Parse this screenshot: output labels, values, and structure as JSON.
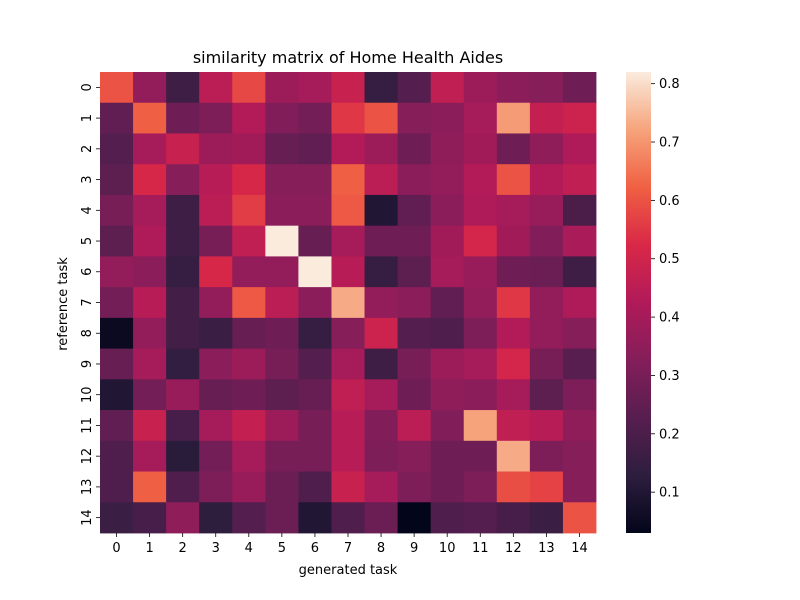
{
  "chart_data": {
    "type": "heatmap",
    "title": "similarity matrix of Home Health Aides",
    "xlabel": "generated task",
    "ylabel": "reference task",
    "x_categories": [
      "0",
      "1",
      "2",
      "3",
      "4",
      "5",
      "6",
      "7",
      "8",
      "9",
      "10",
      "11",
      "12",
      "13",
      "14"
    ],
    "y_categories": [
      "0",
      "1",
      "2",
      "3",
      "4",
      "5",
      "6",
      "7",
      "8",
      "9",
      "10",
      "11",
      "12",
      "13",
      "14"
    ],
    "values": [
      [
        0.6,
        0.36,
        0.17,
        0.45,
        0.58,
        0.38,
        0.4,
        0.48,
        0.15,
        0.22,
        0.46,
        0.38,
        0.34,
        0.33,
        0.28
      ],
      [
        0.25,
        0.62,
        0.28,
        0.31,
        0.43,
        0.32,
        0.29,
        0.55,
        0.6,
        0.33,
        0.34,
        0.4,
        0.71,
        0.47,
        0.49
      ],
      [
        0.22,
        0.4,
        0.48,
        0.38,
        0.39,
        0.26,
        0.25,
        0.43,
        0.38,
        0.28,
        0.35,
        0.39,
        0.28,
        0.35,
        0.42
      ],
      [
        0.24,
        0.52,
        0.33,
        0.44,
        0.52,
        0.33,
        0.33,
        0.62,
        0.45,
        0.34,
        0.36,
        0.43,
        0.6,
        0.43,
        0.46
      ],
      [
        0.3,
        0.4,
        0.17,
        0.45,
        0.56,
        0.34,
        0.34,
        0.61,
        0.1,
        0.25,
        0.34,
        0.42,
        0.4,
        0.37,
        0.2
      ],
      [
        0.24,
        0.42,
        0.17,
        0.3,
        0.46,
        0.82,
        0.26,
        0.4,
        0.28,
        0.28,
        0.39,
        0.51,
        0.39,
        0.32,
        0.41
      ],
      [
        0.36,
        0.34,
        0.15,
        0.52,
        0.36,
        0.36,
        0.82,
        0.44,
        0.15,
        0.24,
        0.4,
        0.37,
        0.28,
        0.27,
        0.17
      ],
      [
        0.29,
        0.44,
        0.18,
        0.36,
        0.61,
        0.45,
        0.34,
        0.73,
        0.36,
        0.34,
        0.25,
        0.36,
        0.55,
        0.36,
        0.42
      ],
      [
        0.05,
        0.36,
        0.18,
        0.16,
        0.26,
        0.28,
        0.15,
        0.33,
        0.49,
        0.22,
        0.21,
        0.31,
        0.43,
        0.36,
        0.33
      ],
      [
        0.26,
        0.4,
        0.14,
        0.34,
        0.38,
        0.3,
        0.22,
        0.4,
        0.17,
        0.3,
        0.38,
        0.4,
        0.51,
        0.3,
        0.23
      ],
      [
        0.1,
        0.29,
        0.37,
        0.26,
        0.28,
        0.24,
        0.26,
        0.46,
        0.4,
        0.28,
        0.35,
        0.34,
        0.4,
        0.24,
        0.31
      ],
      [
        0.25,
        0.48,
        0.19,
        0.4,
        0.47,
        0.38,
        0.3,
        0.44,
        0.32,
        0.45,
        0.32,
        0.72,
        0.46,
        0.44,
        0.35
      ],
      [
        0.21,
        0.4,
        0.12,
        0.29,
        0.4,
        0.3,
        0.3,
        0.44,
        0.31,
        0.33,
        0.28,
        0.28,
        0.73,
        0.31,
        0.33
      ],
      [
        0.21,
        0.62,
        0.21,
        0.31,
        0.37,
        0.27,
        0.21,
        0.48,
        0.4,
        0.31,
        0.28,
        0.31,
        0.59,
        0.57,
        0.33
      ],
      [
        0.16,
        0.19,
        0.35,
        0.13,
        0.22,
        0.27,
        0.1,
        0.21,
        0.27,
        0.03,
        0.21,
        0.22,
        0.19,
        0.16,
        0.6
      ]
    ],
    "vmin": 0.03,
    "vmax": 0.82,
    "colorbar_ticks": [
      "0.1",
      "0.2",
      "0.3",
      "0.4",
      "0.5",
      "0.6",
      "0.7",
      "0.8"
    ],
    "colormap_stops": [
      "#03051a",
      "#2d1e3e",
      "#571e4f",
      "#841e5a",
      "#b11a59",
      "#d92847",
      "#f06043",
      "#f6a47c",
      "#faebdd"
    ],
    "grid": false,
    "legend": "colorbar-right"
  }
}
